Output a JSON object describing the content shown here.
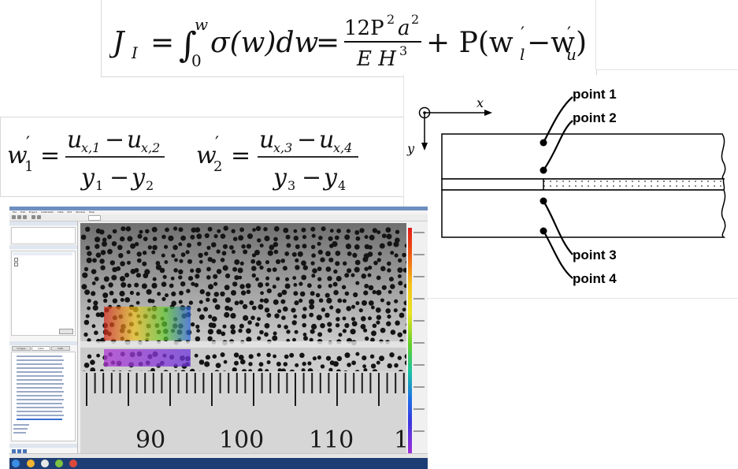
{
  "equation_top": {
    "lhs": "J",
    "lhs_sub": "I",
    "integral_upper": "w",
    "integral_lower": "0",
    "integrand": "σ(w)dw",
    "numerator": "12P",
    "numerator_exp": "2",
    "numerator_a": "a",
    "numerator_a_exp": "2",
    "denominator": "E H",
    "denominator_exp": "3",
    "tail": "+ P(w",
    "tail_sub_l": "l",
    "tail_mid": "−w",
    "tail_sub_u": "u",
    "tail_end": ")",
    "prime": "′",
    "equals": "="
  },
  "equation_slopes": {
    "w1": "w",
    "w1_sub": "1",
    "w2": "w",
    "w2_sub": "2",
    "prime": "′",
    "equals": "=",
    "num1_a": "u",
    "num1_a_sub": "x,1",
    "num1_b": "u",
    "num1_b_sub": "x,2",
    "den1_a": "y",
    "den1_a_sub": "1",
    "den1_b": "y",
    "den1_b_sub": "2",
    "num2_a": "u",
    "num2_a_sub": "x,3",
    "num2_b": "u",
    "num2_b_sub": "x,4",
    "den2_a": "y",
    "den2_a_sub": "3",
    "den2_b": "y",
    "den2_b_sub": "4",
    "minus": "−"
  },
  "diagram": {
    "x_axis": "x",
    "y_axis": "y",
    "points": [
      "point 1",
      "point 2",
      "point 3",
      "point 4"
    ]
  },
  "software": {
    "menu": [
      "File",
      "Edit",
      "Project",
      "Calibration",
      "Data",
      "Plot",
      "Window",
      "Help"
    ],
    "ruler_labels": [
      "90",
      "100",
      "110",
      "1"
    ],
    "tabs": [
      "Images",
      "Data",
      "Calib."
    ],
    "colorbar_colors": [
      "#e21c1c",
      "#f3c21a",
      "#62cf2c",
      "#1f6ee6",
      "#a02fd8"
    ]
  }
}
